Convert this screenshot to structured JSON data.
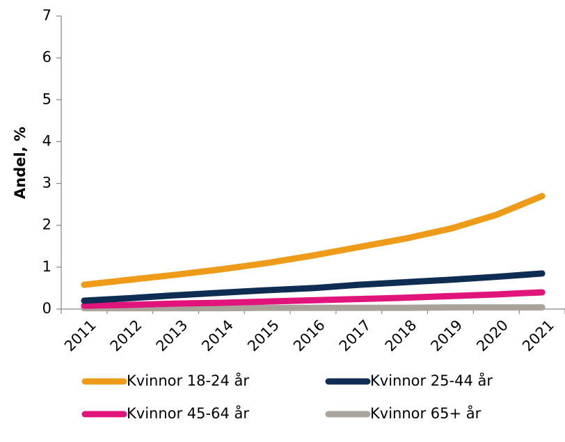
{
  "chart_data": {
    "type": "line",
    "y_label": "Andel, %",
    "categories": [
      "2011",
      "2012",
      "2013",
      "2014",
      "2015",
      "2016",
      "2017",
      "2018",
      "2019",
      "2020",
      "2021"
    ],
    "series": [
      {
        "name": "Kvinnor 18-24 år",
        "color": "#ee9b1a",
        "values": [
          0.58,
          0.7,
          0.82,
          0.95,
          1.1,
          1.28,
          1.48,
          1.68,
          1.92,
          2.25,
          2.7
        ]
      },
      {
        "name": "Kvinnor 25-44 år",
        "color": "#0f2d52",
        "values": [
          0.2,
          0.26,
          0.33,
          0.39,
          0.45,
          0.5,
          0.58,
          0.64,
          0.7,
          0.77,
          0.85
        ]
      },
      {
        "name": "Kvinnor 45-64 år",
        "color": "#e0147a",
        "values": [
          0.08,
          0.1,
          0.13,
          0.15,
          0.18,
          0.21,
          0.24,
          0.27,
          0.31,
          0.35,
          0.4
        ]
      },
      {
        "name": "Kvinnor 65+ år",
        "color": "#aaa39b",
        "values": [
          0.02,
          0.02,
          0.02,
          0.02,
          0.03,
          0.03,
          0.03,
          0.03,
          0.04,
          0.04,
          0.04
        ]
      }
    ],
    "ylim": [
      0,
      7
    ],
    "yticks": [
      0,
      1,
      2,
      3,
      4,
      5,
      6,
      7
    ]
  }
}
